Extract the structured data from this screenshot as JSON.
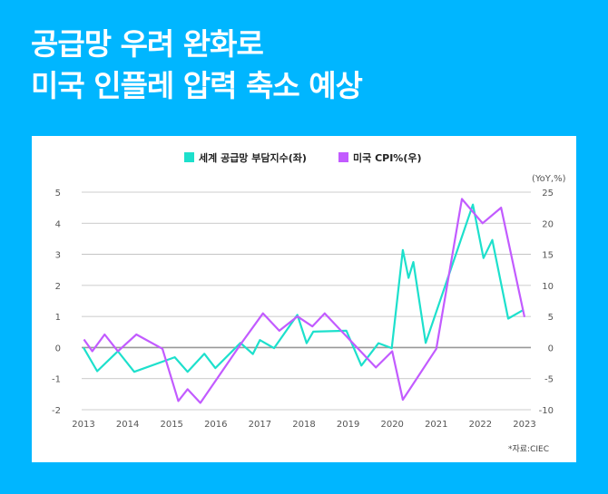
{
  "title": {
    "line1": "공급망 우려 완화로",
    "line2": "미국 인플레 압력 축소 예상"
  },
  "source": "*자료:CIEC",
  "colors": {
    "background": "#00B6FF",
    "supply_chain": "#1DE0CC",
    "cpi": "#C25BFF",
    "grid": "#BBBBBB"
  },
  "chart_data": {
    "type": "line",
    "title": "",
    "x_ticks": [
      "2013",
      "2014",
      "2015",
      "2016",
      "2017",
      "2018",
      "2019",
      "2020",
      "2021",
      "2022",
      "2023"
    ],
    "xlim": [
      2013,
      2023
    ],
    "left_axis": {
      "ylim": [
        -2,
        5
      ],
      "ticks": [
        "5",
        "4",
        "3",
        "2",
        "1",
        "0",
        "-1",
        "-2"
      ]
    },
    "right_axis": {
      "unit_label": "(YoY,%)",
      "ylim": [
        -10,
        25
      ],
      "ticks": [
        "25",
        "20",
        "15",
        "10",
        "5",
        "0",
        "-5",
        "-10"
      ]
    },
    "grid": true,
    "legend_position": "top-center",
    "series": [
      {
        "name": "세계 공급망 부담지수(좌)",
        "axis": "left",
        "color": "#1DE0CC",
        "x": [
          2013.0,
          2013.31,
          2013.78,
          2014.15,
          2015.07,
          2015.36,
          2015.74,
          2015.99,
          2016.56,
          2016.84,
          2017.0,
          2017.32,
          2017.85,
          2018.06,
          2018.21,
          2018.96,
          2019.3,
          2019.69,
          2019.99,
          2020.24,
          2020.37,
          2020.48,
          2020.76,
          2021.83,
          2022.07,
          2022.27,
          2022.63,
          2022.95
        ],
        "y": [
          0,
          -0.76,
          -0.12,
          -0.78,
          -0.31,
          -0.78,
          -0.2,
          -0.66,
          0.15,
          -0.21,
          0.24,
          -0.02,
          1.05,
          0.14,
          0.51,
          0.54,
          -0.58,
          0.14,
          -0.02,
          3.14,
          2.24,
          2.75,
          0.15,
          4.6,
          2.88,
          3.46,
          0.93,
          1.19
        ]
      },
      {
        "name": "미국 CPI%(우)",
        "axis": "right",
        "color": "#C25BFF",
        "x": [
          2013.01,
          2013.2,
          2013.48,
          2013.78,
          2014.2,
          2014.79,
          2015.15,
          2015.36,
          2015.65,
          2016.58,
          2017.07,
          2017.44,
          2017.85,
          2018.19,
          2018.47,
          2019.63,
          2020.0,
          2020.24,
          2021.0,
          2021.58,
          2022.05,
          2022.47,
          2023.0
        ],
        "y": [
          1.3,
          -0.6,
          2.1,
          -0.6,
          2.1,
          -0.2,
          -8.6,
          -6.7,
          -8.9,
          0.7,
          5.5,
          2.7,
          5.0,
          3.4,
          5.5,
          -3.2,
          -0.6,
          -8.4,
          -0.2,
          23.9,
          20.0,
          22.5,
          4.9
        ]
      }
    ]
  }
}
